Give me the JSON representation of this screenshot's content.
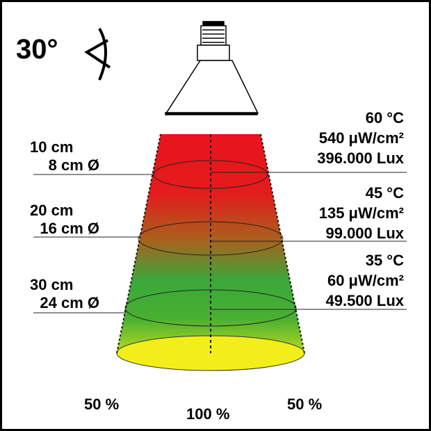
{
  "angle": {
    "label": "30°",
    "icon": "beam-angle-icon"
  },
  "distances": [
    {
      "distance": "10 cm",
      "diameter": "8 cm Ø"
    },
    {
      "distance": "20 cm",
      "diameter": "16 cm Ø"
    },
    {
      "distance": "30 cm",
      "diameter": "24 cm Ø"
    }
  ],
  "readings": [
    {
      "temperature": "60 °C",
      "irradiance": "540 μW/cm²",
      "illuminance": "396.000 Lux"
    },
    {
      "temperature": "45 °C",
      "irradiance": "135 μW/cm²",
      "illuminance": "99.000 Lux"
    },
    {
      "temperature": "35 °C",
      "irradiance": "60 μW/cm²",
      "illuminance": "49.500 Lux"
    }
  ],
  "intensity": {
    "left": "50 %",
    "center": "100 %",
    "right": "50 %"
  },
  "colors": {
    "near": "#e8141c",
    "mid": "#3aa83a",
    "far": "#f2ee1a"
  }
}
